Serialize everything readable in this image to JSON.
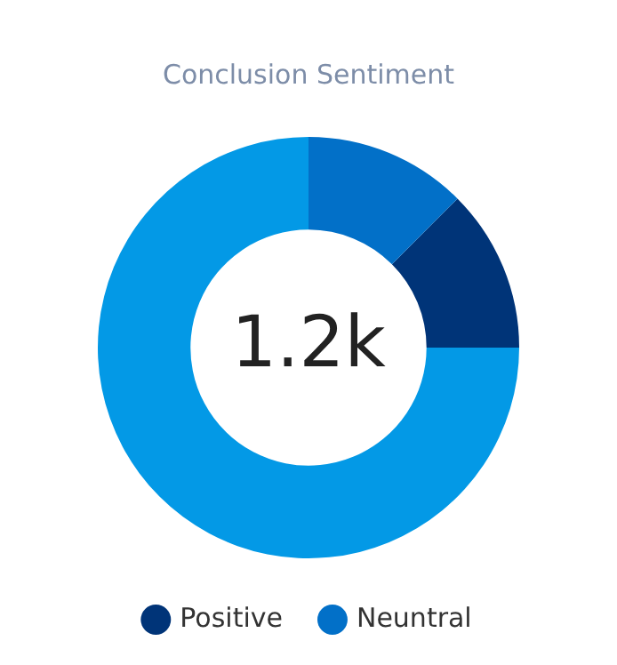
{
  "chart_data": {
    "type": "donut",
    "title": "Conclusion Sentiment",
    "categories": [
      "Positive",
      null,
      "Neuntral"
    ],
    "values": [
      12.5,
      75,
      12.5
    ],
    "colors": [
      "#003478",
      "#0399e6",
      "#0270c8"
    ],
    "annotations": [
      "1.2k"
    ],
    "legend": "bottom"
  }
}
